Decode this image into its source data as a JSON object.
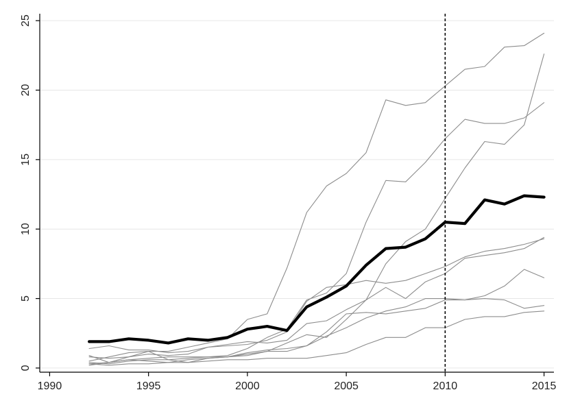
{
  "chart_data": {
    "type": "line",
    "title": "",
    "xlabel": "",
    "ylabel": "",
    "xlim": [
      1989.5,
      2015.5
    ],
    "ylim": [
      -0.3,
      25.5
    ],
    "xticks": [
      1990,
      1995,
      2000,
      2005,
      2010,
      2015
    ],
    "xtick_labels": [
      "1990",
      "1995",
      "2000",
      "2005",
      "2010",
      "2015"
    ],
    "yticks": [
      0,
      5,
      10,
      15,
      20,
      25
    ],
    "ytick_labels": [
      "0",
      "5",
      "10",
      "15",
      "20",
      "25"
    ],
    "grid": "horizontal",
    "legend": "none",
    "reference_line": {
      "x": 2010,
      "style": "dashed",
      "color": "#000000"
    },
    "x": [
      1992,
      1993,
      1994,
      1995,
      1996,
      1997,
      1998,
      1999,
      2000,
      2001,
      2002,
      2003,
      2004,
      2005,
      2006,
      2007,
      2008,
      2009,
      2010,
      2011,
      2012,
      2013,
      2014,
      2015
    ],
    "series": [
      {
        "color": "#8c8c8c",
        "width": 1.1,
        "values": [
          0.9,
          0.4,
          0.8,
          1.2,
          1.2,
          1.5,
          1.8,
          2.1,
          3.5,
          3.9,
          7.2,
          11.2,
          13.1,
          14.0,
          15.5,
          19.3,
          18.9,
          19.1,
          20.3,
          21.5,
          21.7,
          23.1,
          23.2,
          24.1
        ]
      },
      {
        "color": "#8c8c8c",
        "width": 1.1,
        "values": [
          0.3,
          0.4,
          0.6,
          0.7,
          0.8,
          0.8,
          0.8,
          0.9,
          1.4,
          2.2,
          2.8,
          4.9,
          5.4,
          6.8,
          10.5,
          13.5,
          13.4,
          14.8,
          16.5,
          17.9,
          17.6,
          17.6,
          18.0,
          19.1
        ]
      },
      {
        "color": "#8c8c8c",
        "width": 1.1,
        "values": [
          0.4,
          0.3,
          0.5,
          0.6,
          0.6,
          0.7,
          0.8,
          0.8,
          1.0,
          1.2,
          1.8,
          2.4,
          2.2,
          3.5,
          4.9,
          7.5,
          9.1,
          10.0,
          12.2,
          14.4,
          16.3,
          16.1,
          17.5,
          22.6
        ]
      },
      {
        "color": "#8c8c8c",
        "width": 1.1,
        "values": [
          0.8,
          0.7,
          0.8,
          1.0,
          0.9,
          1.0,
          1.5,
          1.7,
          1.9,
          1.8,
          2.0,
          3.2,
          3.4,
          4.2,
          4.9,
          5.8,
          5.0,
          6.2,
          6.8,
          7.9,
          8.1,
          8.3,
          8.6,
          9.4
        ]
      },
      {
        "color": "#8c8c8c",
        "width": 1.1,
        "values": [
          1.4,
          1.6,
          1.3,
          1.3,
          1.1,
          1.2,
          1.5,
          1.6,
          1.7,
          2.0,
          2.6,
          4.8,
          5.8,
          6.0,
          6.3,
          6.1,
          6.3,
          6.8,
          7.3,
          8.0,
          8.4,
          8.6,
          8.9,
          9.3
        ]
      },
      {
        "color": "#8c8c8c",
        "width": 1.1,
        "values": [
          0.5,
          0.8,
          1.1,
          1.2,
          0.6,
          0.4,
          0.7,
          0.8,
          0.9,
          1.2,
          1.2,
          1.6,
          2.6,
          3.9,
          4.0,
          3.9,
          4.1,
          4.3,
          4.9,
          4.9,
          5.2,
          5.9,
          7.1,
          6.5
        ]
      },
      {
        "color": "#8c8c8c",
        "width": 1.1,
        "values": [
          0.2,
          0.4,
          0.6,
          0.5,
          0.4,
          0.6,
          0.7,
          0.8,
          1.1,
          1.3,
          1.4,
          1.6,
          2.3,
          2.9,
          3.6,
          4.1,
          4.4,
          5.0,
          5.0,
          4.9,
          5.0,
          4.9,
          4.3,
          4.5
        ]
      },
      {
        "color": "#8c8c8c",
        "width": 1.1,
        "values": [
          0.3,
          0.2,
          0.3,
          0.3,
          0.4,
          0.4,
          0.5,
          0.6,
          0.6,
          0.7,
          0.7,
          0.7,
          0.9,
          1.1,
          1.7,
          2.2,
          2.2,
          2.9,
          2.9,
          3.5,
          3.7,
          3.7,
          4.0,
          4.1
        ]
      },
      {
        "color": "#000000",
        "width": 4.2,
        "values": [
          1.9,
          1.9,
          2.1,
          2.0,
          1.8,
          2.1,
          2.0,
          2.2,
          2.8,
          3.0,
          2.7,
          4.4,
          5.1,
          5.9,
          7.4,
          8.6,
          8.7,
          9.3,
          10.5,
          10.4,
          12.1,
          11.8,
          12.4,
          12.3
        ]
      }
    ]
  }
}
